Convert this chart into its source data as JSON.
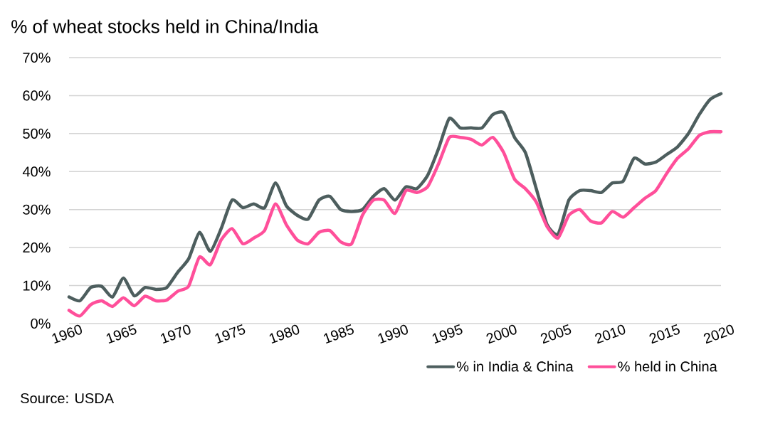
{
  "chart_data": {
    "type": "line",
    "title": "% of wheat stocks held in China/India",
    "annotations": [
      "Source: USDA"
    ],
    "x": [
      1960,
      1961,
      1962,
      1963,
      1964,
      1965,
      1966,
      1967,
      1968,
      1969,
      1970,
      1971,
      1972,
      1973,
      1974,
      1975,
      1976,
      1977,
      1978,
      1979,
      1980,
      1981,
      1982,
      1983,
      1984,
      1985,
      1986,
      1987,
      1988,
      1989,
      1990,
      1991,
      1992,
      1993,
      1994,
      1995,
      1996,
      1997,
      1998,
      1999,
      2000,
      2001,
      2002,
      2003,
      2004,
      2005,
      2006,
      2007,
      2008,
      2009,
      2010,
      2011,
      2012,
      2013,
      2014,
      2015,
      2016,
      2017,
      2018,
      2019,
      2020
    ],
    "series": [
      {
        "name": "% in India & China",
        "color": "#4d5e5e",
        "values": [
          7,
          6,
          9.5,
          9.8,
          7,
          12,
          7.3,
          9.5,
          9,
          9.5,
          13.5,
          17,
          24,
          19,
          25,
          32.5,
          30.5,
          31.5,
          30.5,
          37,
          31,
          28.5,
          27.5,
          32.5,
          33.5,
          30,
          29.5,
          30,
          33.5,
          35.5,
          32.5,
          36,
          35.5,
          39,
          46,
          54,
          51.5,
          51.5,
          51.5,
          55,
          55.5,
          49,
          45,
          35.5,
          26,
          23.5,
          32.5,
          35,
          35,
          34.5,
          37,
          37.5,
          43.5,
          42,
          42.5,
          44.5,
          46.5,
          50,
          55,
          59,
          60.5
        ]
      },
      {
        "name": "% held in China",
        "color": "#ff4f9a",
        "values": [
          3.5,
          2,
          5,
          6,
          4.5,
          6.8,
          4.7,
          7.2,
          6,
          6.2,
          8.5,
          9.8,
          17.5,
          15.5,
          22,
          25,
          21,
          22.5,
          24.5,
          31.5,
          26,
          22,
          21,
          24,
          24.5,
          21.5,
          21,
          28.5,
          32.5,
          32.5,
          29,
          35,
          34.5,
          36,
          42,
          49,
          49,
          48.5,
          47,
          49,
          45,
          38,
          35.5,
          32,
          25.5,
          22.5,
          28.5,
          30,
          27,
          26.5,
          29.5,
          28,
          30.5,
          33,
          35,
          39.5,
          43.5,
          46,
          49.5,
          50.5,
          50.5
        ]
      }
    ],
    "xlim": [
      1960,
      2020
    ],
    "xticks": [
      1960,
      1965,
      1970,
      1975,
      1980,
      1985,
      1990,
      1995,
      2000,
      2005,
      2010,
      2015,
      2020
    ],
    "ylim": [
      0,
      70
    ],
    "yticks": [
      {
        "value": 0,
        "label": "0%"
      },
      {
        "value": 10,
        "label": "10%"
      },
      {
        "value": 20,
        "label": "20%"
      },
      {
        "value": 30,
        "label": "30%"
      },
      {
        "value": 40,
        "label": "40%"
      },
      {
        "value": 50,
        "label": "50%"
      },
      {
        "value": 60,
        "label": "60%"
      },
      {
        "value": 70,
        "label": "70%"
      }
    ],
    "grid": "y",
    "legend": "bottom right",
    "marker": "none",
    "line_style": "solid"
  }
}
